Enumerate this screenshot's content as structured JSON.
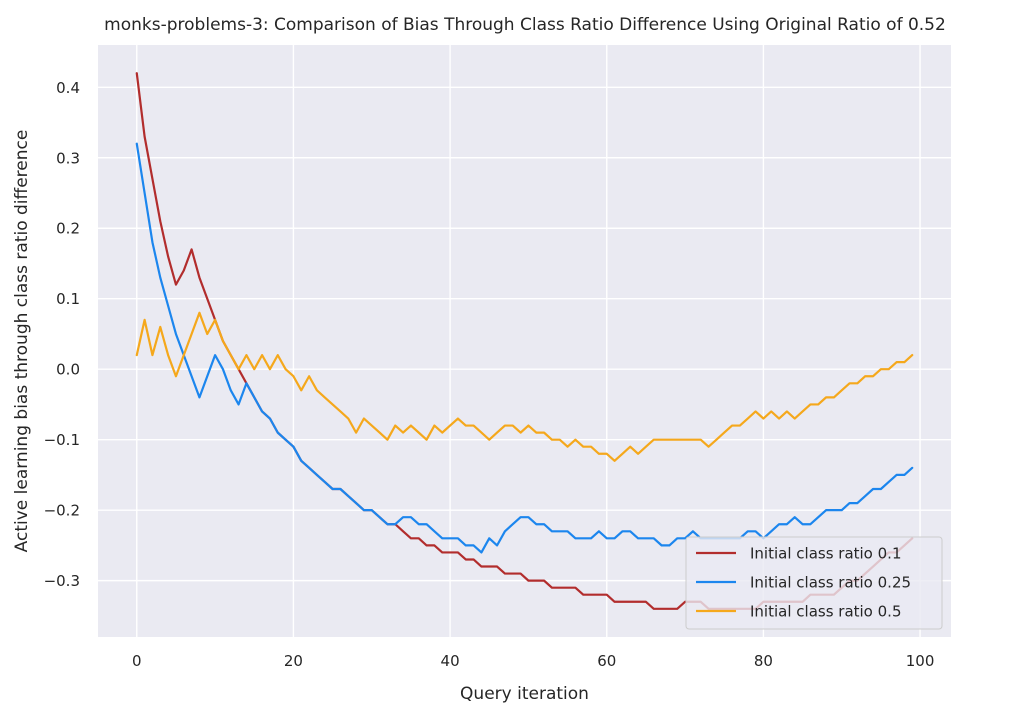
{
  "chart_data": {
    "type": "line",
    "title": "monks-problems-3: Comparison of Bias Through Class Ratio Difference Using Original Ratio of 0.52",
    "xlabel": "Query iteration",
    "ylabel": "Active learning bias through class ratio difference",
    "xlim": [
      -4.95,
      103.95
    ],
    "ylim": [
      -0.38,
      0.46
    ],
    "xticks": [
      0,
      20,
      40,
      60,
      80,
      100
    ],
    "xtick_labels": [
      "0",
      "20",
      "40",
      "60",
      "80",
      "100"
    ],
    "yticks": [
      0.4,
      0.3,
      0.2,
      0.1,
      0.0,
      -0.1,
      -0.2,
      -0.3
    ],
    "ytick_labels": [
      "0.4",
      "0.3",
      "0.2",
      "0.1",
      "0.0",
      "−0.1",
      "−0.2",
      "−0.3"
    ],
    "grid": true,
    "legend_position": "lower-right",
    "x": [
      0,
      1,
      2,
      3,
      4,
      5,
      6,
      7,
      8,
      9,
      10,
      11,
      12,
      13,
      14,
      15,
      16,
      17,
      18,
      19,
      20,
      21,
      22,
      23,
      24,
      25,
      26,
      27,
      28,
      29,
      30,
      31,
      32,
      33,
      34,
      35,
      36,
      37,
      38,
      39,
      40,
      41,
      42,
      43,
      44,
      45,
      46,
      47,
      48,
      49,
      50,
      51,
      52,
      53,
      54,
      55,
      56,
      57,
      58,
      59,
      60,
      61,
      62,
      63,
      64,
      65,
      66,
      67,
      68,
      69,
      70,
      71,
      72,
      73,
      74,
      75,
      76,
      77,
      78,
      79,
      80,
      81,
      82,
      83,
      84,
      85,
      86,
      87,
      88,
      89,
      90,
      91,
      92,
      93,
      94,
      95,
      96,
      97,
      98,
      99
    ],
    "series": [
      {
        "name": "Initial class ratio 0.1",
        "color": "#b22d2d",
        "values": [
          0.42,
          0.33,
          0.27,
          0.21,
          0.16,
          0.12,
          0.14,
          0.17,
          0.13,
          0.1,
          0.07,
          0.04,
          0.02,
          0.0,
          -0.02,
          -0.04,
          -0.06,
          -0.07,
          -0.09,
          -0.1,
          -0.11,
          -0.13,
          -0.14,
          -0.15,
          -0.16,
          -0.17,
          -0.17,
          -0.18,
          -0.19,
          -0.2,
          -0.2,
          -0.21,
          -0.22,
          -0.22,
          -0.23,
          -0.24,
          -0.24,
          -0.25,
          -0.25,
          -0.26,
          -0.26,
          -0.26,
          -0.27,
          -0.27,
          -0.28,
          -0.28,
          -0.28,
          -0.29,
          -0.29,
          -0.29,
          -0.3,
          -0.3,
          -0.3,
          -0.31,
          -0.31,
          -0.31,
          -0.31,
          -0.32,
          -0.32,
          -0.32,
          -0.32,
          -0.33,
          -0.33,
          -0.33,
          -0.33,
          -0.33,
          -0.34,
          -0.34,
          -0.34,
          -0.34,
          -0.33,
          -0.33,
          -0.33,
          -0.34,
          -0.34,
          -0.34,
          -0.34,
          -0.34,
          -0.34,
          -0.34,
          -0.33,
          -0.33,
          -0.33,
          -0.33,
          -0.33,
          -0.33,
          -0.32,
          -0.32,
          -0.32,
          -0.32,
          -0.31,
          -0.3,
          -0.3,
          -0.29,
          -0.28,
          -0.27,
          -0.26,
          -0.26,
          -0.25,
          -0.24
        ]
      },
      {
        "name": "Initial class ratio 0.25",
        "color": "#1c86ee",
        "values": [
          0.32,
          0.25,
          0.18,
          0.13,
          0.09,
          0.05,
          0.02,
          -0.01,
          -0.04,
          -0.01,
          0.02,
          0.0,
          -0.03,
          -0.05,
          -0.02,
          -0.04,
          -0.06,
          -0.07,
          -0.09,
          -0.1,
          -0.11,
          -0.13,
          -0.14,
          -0.15,
          -0.16,
          -0.17,
          -0.17,
          -0.18,
          -0.19,
          -0.2,
          -0.2,
          -0.21,
          -0.22,
          -0.22,
          -0.21,
          -0.21,
          -0.22,
          -0.22,
          -0.23,
          -0.24,
          -0.24,
          -0.24,
          -0.25,
          -0.25,
          -0.26,
          -0.24,
          -0.25,
          -0.23,
          -0.22,
          -0.21,
          -0.21,
          -0.22,
          -0.22,
          -0.23,
          -0.23,
          -0.23,
          -0.24,
          -0.24,
          -0.24,
          -0.23,
          -0.24,
          -0.24,
          -0.23,
          -0.23,
          -0.24,
          -0.24,
          -0.24,
          -0.25,
          -0.25,
          -0.24,
          -0.24,
          -0.23,
          -0.24,
          -0.24,
          -0.24,
          -0.24,
          -0.24,
          -0.24,
          -0.23,
          -0.23,
          -0.24,
          -0.23,
          -0.22,
          -0.22,
          -0.21,
          -0.22,
          -0.22,
          -0.21,
          -0.2,
          -0.2,
          -0.2,
          -0.19,
          -0.19,
          -0.18,
          -0.17,
          -0.17,
          -0.16,
          -0.15,
          -0.15,
          -0.14
        ]
      },
      {
        "name": "Initial class ratio 0.5",
        "color": "#f5a81c",
        "values": [
          0.02,
          0.07,
          0.02,
          0.06,
          0.02,
          -0.01,
          0.02,
          0.05,
          0.08,
          0.05,
          0.07,
          0.04,
          0.02,
          0.0,
          0.02,
          0.0,
          0.02,
          0.0,
          0.02,
          0.0,
          -0.01,
          -0.03,
          -0.01,
          -0.03,
          -0.04,
          -0.05,
          -0.06,
          -0.07,
          -0.09,
          -0.07,
          -0.08,
          -0.09,
          -0.1,
          -0.08,
          -0.09,
          -0.08,
          -0.09,
          -0.1,
          -0.08,
          -0.09,
          -0.08,
          -0.07,
          -0.08,
          -0.08,
          -0.09,
          -0.1,
          -0.09,
          -0.08,
          -0.08,
          -0.09,
          -0.08,
          -0.09,
          -0.09,
          -0.1,
          -0.1,
          -0.11,
          -0.1,
          -0.11,
          -0.11,
          -0.12,
          -0.12,
          -0.13,
          -0.12,
          -0.11,
          -0.12,
          -0.11,
          -0.1,
          -0.1,
          -0.1,
          -0.1,
          -0.1,
          -0.1,
          -0.1,
          -0.11,
          -0.1,
          -0.09,
          -0.08,
          -0.08,
          -0.07,
          -0.06,
          -0.07,
          -0.06,
          -0.07,
          -0.06,
          -0.07,
          -0.06,
          -0.05,
          -0.05,
          -0.04,
          -0.04,
          -0.03,
          -0.02,
          -0.02,
          -0.01,
          -0.01,
          0.0,
          0.0,
          0.01,
          0.01,
          0.02
        ]
      }
    ]
  }
}
